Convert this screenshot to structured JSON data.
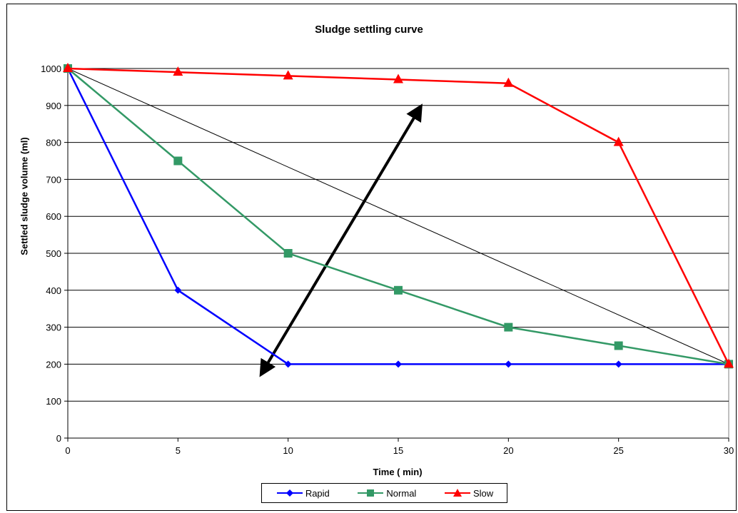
{
  "chart_data": {
    "type": "line",
    "title": "Sludge settling curve",
    "xlabel": "Time ( min)",
    "ylabel": "Settled sludge volume (ml)",
    "x": [
      0,
      5,
      10,
      15,
      20,
      25,
      30
    ],
    "xlim": [
      0,
      30
    ],
    "ylim": [
      0,
      1000
    ],
    "xticks": [
      "0",
      "5",
      "10",
      "15",
      "20",
      "25",
      "30"
    ],
    "yticks": [
      "0",
      "100",
      "200",
      "300",
      "400",
      "500",
      "600",
      "700",
      "800",
      "900",
      "1000"
    ],
    "grid": "horizontal",
    "legend_position": "bottom",
    "series": [
      {
        "name": "Rapid",
        "values": [
          1000,
          400,
          200,
          200,
          200,
          200,
          200
        ],
        "color": "#0000ff",
        "marker": "diamond"
      },
      {
        "name": "Normal",
        "values": [
          1000,
          750,
          500,
          400,
          300,
          250,
          200
        ],
        "color": "#339966",
        "marker": "square"
      },
      {
        "name": "Slow",
        "values": [
          1000,
          990,
          980,
          970,
          960,
          800,
          200
        ],
        "color": "#ff0000",
        "marker": "triangle"
      }
    ],
    "annotations": {
      "diagonal_line": {
        "from": [
          0,
          1000
        ],
        "to": [
          30,
          200
        ],
        "color": "#000000"
      },
      "double_arrow": {
        "from": [
          8.8,
          175
        ],
        "to": [
          16,
          895
        ],
        "color": "#000000"
      }
    }
  }
}
